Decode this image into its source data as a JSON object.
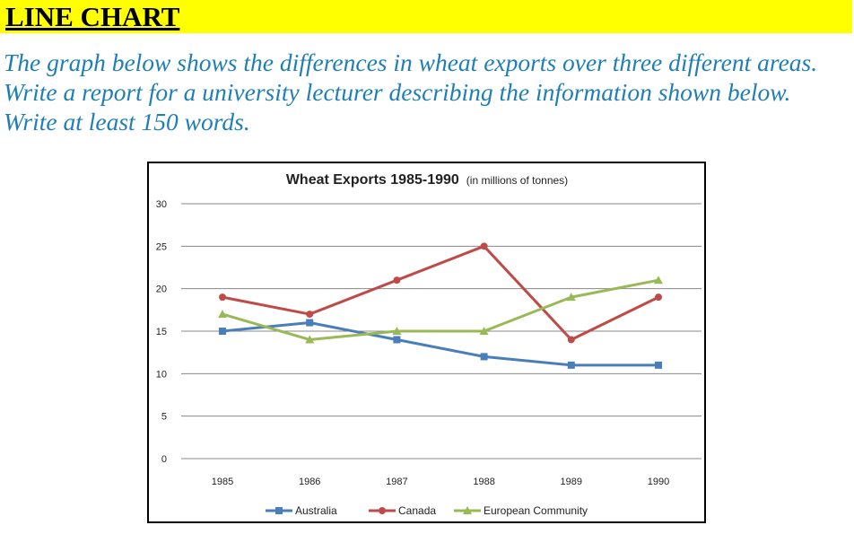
{
  "header": {
    "title": "LINE CHART",
    "prompt": "The graph below shows the differences in wheat exports over three different areas. Write a report for a university lecturer describing the information shown below. Write at least 150 words."
  },
  "colors": {
    "banner": "#ffff00",
    "prompt_text": "#1f7fb5"
  },
  "chart_data": {
    "type": "line",
    "title": "Wheat Exports 1985-1990",
    "subtitle": "(in millions of tonnes)",
    "x": [
      "1985",
      "1986",
      "1987",
      "1988",
      "1989",
      "1990"
    ],
    "ylim": [
      0,
      30
    ],
    "yticks": [
      0,
      5,
      10,
      15,
      20,
      25,
      30
    ],
    "grid": true,
    "legend": "bottom",
    "series": [
      {
        "name": "Australia",
        "values": [
          15,
          16,
          14,
          12,
          11,
          11
        ],
        "color": "#4a7ebb",
        "marker": "square"
      },
      {
        "name": "Canada",
        "values": [
          19,
          17,
          21,
          25,
          14,
          19
        ],
        "color": "#be4b48",
        "marker": "circle"
      },
      {
        "name": "European Community",
        "values": [
          17,
          14,
          15,
          15,
          19,
          21
        ],
        "color": "#98b954",
        "marker": "triangle"
      }
    ]
  }
}
